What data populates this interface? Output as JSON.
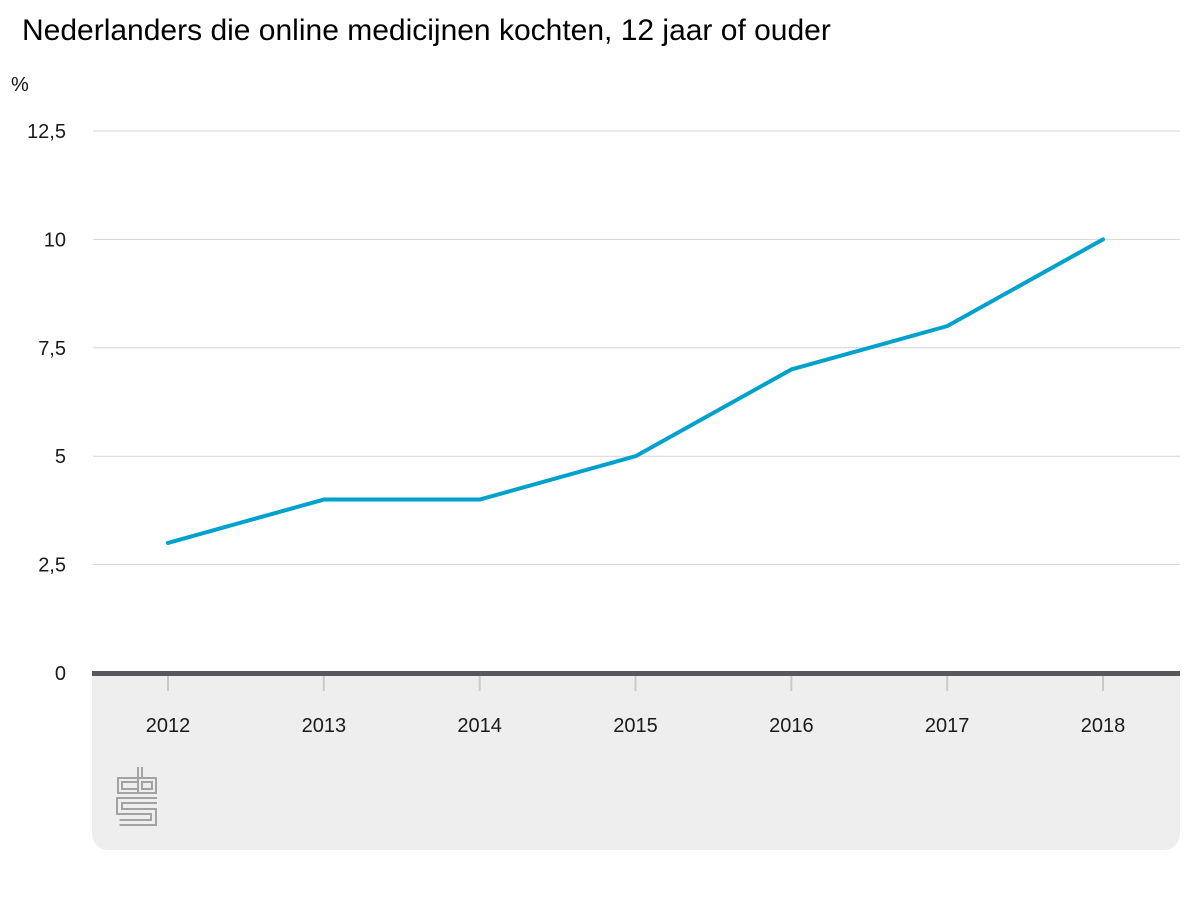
{
  "header": {
    "title": "Nederlanders die online medicijnen kochten, 12 jaar of ouder",
    "unit_label": "%"
  },
  "footer": {
    "logo": "cbs-logo"
  },
  "chart_data": {
    "type": "line",
    "title": "Nederlanders die online medicijnen kochten, 12 jaar of ouder",
    "xlabel": "",
    "ylabel": "%",
    "categories": [
      "2012",
      "2013",
      "2014",
      "2015",
      "2016",
      "2017",
      "2018"
    ],
    "values": [
      3,
      4,
      4,
      5,
      7,
      8,
      10
    ],
    "ylim": [
      0,
      12.5
    ],
    "y_ticks": [
      0,
      2.5,
      5,
      7.5,
      10,
      12.5
    ],
    "y_tick_labels": [
      "0",
      "2,5",
      "5",
      "7,5",
      "10",
      "12,5"
    ],
    "grid": true,
    "legend": false,
    "colors": {
      "line": "#00a1cd",
      "axis": "#58585a",
      "grid": "#d4d4d4",
      "tick": "#c9c9c9",
      "footer_bg": "#eeeeee",
      "logo": "#a2a2a2",
      "text": "#1a1a1a"
    }
  }
}
